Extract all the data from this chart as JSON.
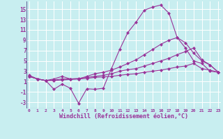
{
  "bg_color": "#c8eef0",
  "grid_color": "#ffffff",
  "line_color": "#993399",
  "marker_color": "#993399",
  "xlabel": "Windchill (Refroidissement éolien,°C)",
  "xlabel_fontsize": 6.0,
  "xtick_labels": [
    "0",
    "1",
    "2",
    "3",
    "4",
    "5",
    "6",
    "7",
    "8",
    "9",
    "10",
    "11",
    "12",
    "13",
    "14",
    "15",
    "16",
    "17",
    "18",
    "19",
    "20",
    "21",
    "22",
    "23"
  ],
  "xticks": [
    0,
    1,
    2,
    3,
    4,
    5,
    6,
    7,
    8,
    9,
    10,
    11,
    12,
    13,
    14,
    15,
    16,
    17,
    18,
    19,
    20,
    21,
    22,
    23
  ],
  "yticks": [
    -3,
    -1,
    1,
    3,
    5,
    7,
    9,
    11,
    13,
    15
  ],
  "xlim": [
    -0.3,
    23.3
  ],
  "ylim": [
    -4.2,
    16.5
  ],
  "lines": [
    {
      "x": [
        0,
        1,
        2,
        3,
        4,
        5,
        6,
        7,
        8,
        9,
        10,
        11,
        12,
        13,
        14,
        15,
        16,
        17,
        18,
        19,
        20,
        21,
        22,
        23
      ],
      "y": [
        2.2,
        1.5,
        1.2,
        -0.5,
        0.5,
        -0.3,
        -3.2,
        -0.4,
        -0.5,
        -0.3,
        3.5,
        7.2,
        10.5,
        12.5,
        14.8,
        15.4,
        15.8,
        14.2,
        9.5,
        7.5,
        5.0,
        4.5,
        3.0,
        2.8
      ]
    },
    {
      "x": [
        0,
        1,
        2,
        3,
        4,
        5,
        6,
        7,
        8,
        9,
        10,
        11,
        12,
        13,
        14,
        15,
        16,
        17,
        18,
        19,
        20,
        21,
        22,
        23
      ],
      "y": [
        2.0,
        1.5,
        1.2,
        1.5,
        2.0,
        1.5,
        1.5,
        2.0,
        2.5,
        2.8,
        3.2,
        3.8,
        4.5,
        5.2,
        6.2,
        7.2,
        8.2,
        9.0,
        9.5,
        8.5,
        6.5,
        5.0,
        4.2,
        2.8
      ]
    },
    {
      "x": [
        0,
        1,
        2,
        3,
        4,
        5,
        6,
        7,
        8,
        9,
        10,
        11,
        12,
        13,
        14,
        15,
        16,
        17,
        18,
        19,
        20,
        21,
        22,
        23
      ],
      "y": [
        2.0,
        1.5,
        1.2,
        1.3,
        1.5,
        1.5,
        1.6,
        1.8,
        2.0,
        2.2,
        2.5,
        3.0,
        3.3,
        3.5,
        4.0,
        4.5,
        5.0,
        5.5,
        6.2,
        6.8,
        7.5,
        5.2,
        4.2,
        2.8
      ]
    },
    {
      "x": [
        0,
        1,
        2,
        3,
        4,
        5,
        6,
        7,
        8,
        9,
        10,
        11,
        12,
        13,
        14,
        15,
        16,
        17,
        18,
        19,
        20,
        21,
        22,
        23
      ],
      "y": [
        2.0,
        1.5,
        1.2,
        1.2,
        1.3,
        1.4,
        1.5,
        1.6,
        1.8,
        1.9,
        2.0,
        2.2,
        2.4,
        2.5,
        2.8,
        3.0,
        3.2,
        3.5,
        3.8,
        4.0,
        4.5,
        3.5,
        3.2,
        2.8
      ]
    }
  ]
}
